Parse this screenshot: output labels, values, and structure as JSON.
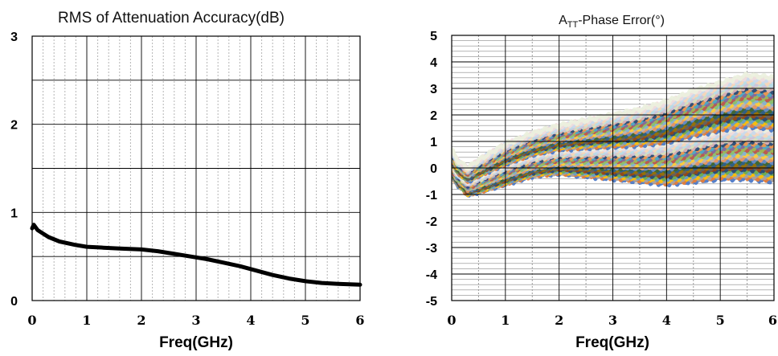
{
  "chart_data": [
    {
      "type": "line",
      "title": "RMS of Attenuation Accuracy(dB)",
      "xlabel": "Freq(GHz)",
      "ylabel": "",
      "xlim": [
        0,
        6
      ],
      "ylim": [
        0,
        3
      ],
      "x_ticks": [
        "0",
        "1",
        "2",
        "3",
        "4",
        "5",
        "6"
      ],
      "y_ticks": [
        "0",
        "1",
        "2",
        "3"
      ],
      "grid": "major gridlines every 1 GHz and every 0.5 dB; dotted minor gridlines every 0.2 GHz",
      "legend": "none",
      "series": [
        {
          "color": "#000000",
          "x": [
            0.0,
            0.03,
            0.1,
            0.2,
            0.3,
            0.5,
            0.8,
            1.0,
            1.3,
            1.6,
            2.0,
            2.3,
            2.6,
            2.9,
            3.2,
            3.5,
            3.8,
            4.1,
            4.4,
            4.7,
            5.0,
            5.3,
            5.6,
            6.0
          ],
          "y": [
            0.82,
            0.86,
            0.8,
            0.76,
            0.72,
            0.67,
            0.63,
            0.61,
            0.6,
            0.59,
            0.58,
            0.56,
            0.53,
            0.5,
            0.47,
            0.43,
            0.39,
            0.34,
            0.29,
            0.25,
            0.22,
            0.2,
            0.19,
            0.18
          ]
        }
      ]
    },
    {
      "type": "line",
      "title": "ATT-Phase Error(°)",
      "title_parts": {
        "main": "A",
        "sub": "TT",
        "rest": "-Phase Error(°)"
      },
      "xlabel": "Freq(GHz)",
      "ylabel": "",
      "xlim": [
        0,
        6
      ],
      "ylim": [
        -5,
        5
      ],
      "x_ticks": [
        "0",
        "1",
        "2",
        "3",
        "4",
        "5",
        "6"
      ],
      "y_ticks": [
        "5",
        "4",
        "3",
        "2",
        "1",
        "0",
        "-1",
        "-2",
        "-3",
        "-4",
        "-5"
      ],
      "grid": "major gridlines every 1 unit; minor gridlines every 0.2 units; dotted vertical minor gridlines every 0.5 GHz",
      "legend": "none",
      "x": [
        0.0,
        0.1,
        0.3,
        0.5,
        1.0,
        1.5,
        2.0,
        2.5,
        3.0,
        3.5,
        4.0,
        4.5,
        5.0,
        5.5,
        6.0
      ],
      "envelope_upper": [
        0.7,
        0.3,
        0.0,
        0.3,
        0.9,
        1.3,
        1.6,
        1.8,
        2.0,
        2.2,
        2.5,
        2.9,
        3.2,
        3.5,
        3.4
      ],
      "envelope_lower": [
        -0.3,
        -0.6,
        -1.0,
        -0.9,
        -0.6,
        -0.3,
        -0.2,
        -0.3,
        -0.4,
        -0.5,
        -0.6,
        -0.5,
        -0.4,
        -0.4,
        -0.5
      ],
      "series_count": 64,
      "series_colors": [
        "#4472c4",
        "#ed7d31",
        "#a5a5a5",
        "#ffc000",
        "#5b9bd5",
        "#70ad47",
        "#264478",
        "#9e480e",
        "#636363",
        "#997300",
        "#255e91",
        "#43682b",
        "#698ed0",
        "#f1975a",
        "#b7b7b7",
        "#ffcd33",
        "#7cafdd",
        "#8cc168",
        "#c0504d",
        "#9bbb59",
        "#8064a2",
        "#4bacc6",
        "#f79646",
        "#1f497d",
        "#e6b9b8",
        "#d7e4bd",
        "#ccc1da",
        "#b7dee8",
        "#fbd5b5",
        "#c6d9f1",
        "#f2dcdb",
        "#ebf1de"
      ]
    }
  ]
}
